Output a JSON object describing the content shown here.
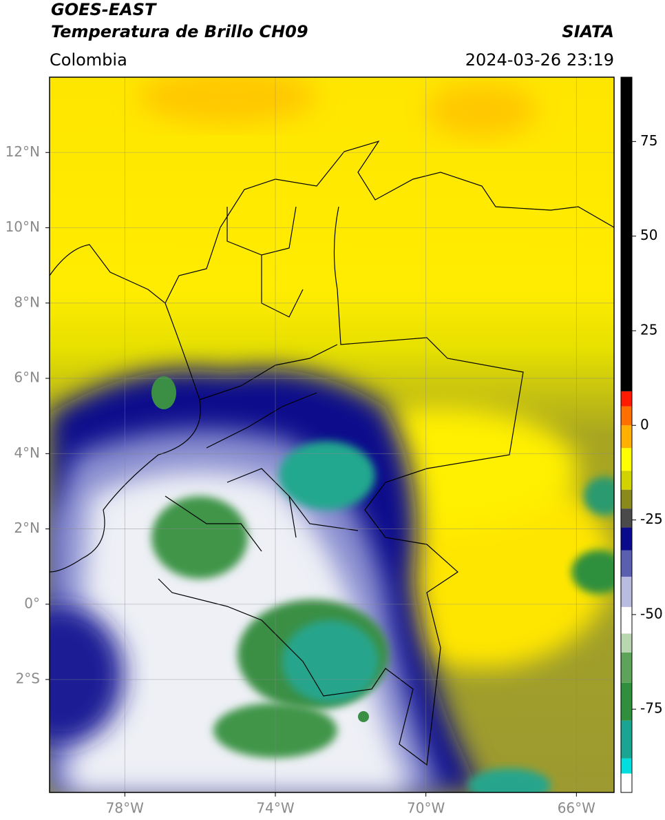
{
  "header": {
    "title": "GOES-EAST",
    "subtitle": "Temperatura de Brillo CH09",
    "source": "SIATA",
    "region": "Colombia",
    "datetime": "2024-03-26 23:19"
  },
  "map": {
    "lonlim": [
      -80,
      -65
    ],
    "latlim": [
      -5,
      14
    ],
    "lonticks": [
      {
        "value": -78,
        "label": "78°W"
      },
      {
        "value": -74,
        "label": "74°W"
      },
      {
        "value": -70,
        "label": "70°W"
      },
      {
        "value": -66,
        "label": "66°W"
      }
    ],
    "latticks": [
      {
        "value": 12,
        "label": "12°N"
      },
      {
        "value": 10,
        "label": "10°N"
      },
      {
        "value": 8,
        "label": "8°N"
      },
      {
        "value": 6,
        "label": "6°N"
      },
      {
        "value": 4,
        "label": "4°N"
      },
      {
        "value": 2,
        "label": "2°N"
      },
      {
        "value": 0,
        "label": "0°"
      },
      {
        "value": -2,
        "label": "2°S"
      }
    ],
    "grid": true
  },
  "colorbar": {
    "lim": [
      -97,
      92
    ],
    "ticks": [
      75,
      50,
      25,
      0,
      -25,
      -50,
      -75
    ],
    "segments": [
      {
        "from": -97,
        "to": -92,
        "color": "#ffffff"
      },
      {
        "from": -92,
        "to": -88,
        "color": "#00dede"
      },
      {
        "from": -88,
        "to": -78,
        "color": "#1aa592"
      },
      {
        "from": -78,
        "to": -68,
        "color": "#2f8f3c"
      },
      {
        "from": -68,
        "to": -60,
        "color": "#5ea35a"
      },
      {
        "from": -60,
        "to": -55,
        "color": "#b8d6b0"
      },
      {
        "from": -55,
        "to": -48,
        "color": "#ffffff"
      },
      {
        "from": -48,
        "to": -40,
        "color": "#b8bce0"
      },
      {
        "from": -40,
        "to": -33,
        "color": "#5a5fb0"
      },
      {
        "from": -33,
        "to": -27,
        "color": "#0a0a8c"
      },
      {
        "from": -27,
        "to": -22,
        "color": "#4a4a4a"
      },
      {
        "from": -22,
        "to": -17,
        "color": "#8a8a1a"
      },
      {
        "from": -17,
        "to": -12,
        "color": "#d2d200"
      },
      {
        "from": -12,
        "to": -6,
        "color": "#ffff00"
      },
      {
        "from": -6,
        "to": 0,
        "color": "#ffb000"
      },
      {
        "from": 0,
        "to": 5,
        "color": "#ff7000"
      },
      {
        "from": 5,
        "to": 9,
        "color": "#ff1a00"
      },
      {
        "from": 9,
        "to": 92,
        "color": "#000000"
      }
    ]
  }
}
